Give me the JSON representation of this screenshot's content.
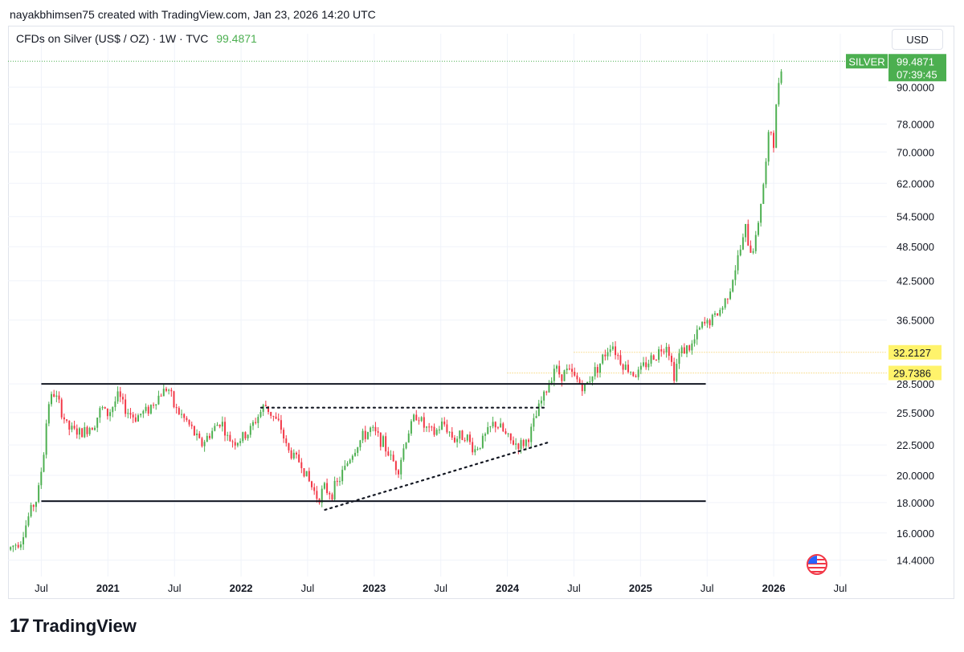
{
  "header": {
    "credit": "nayakbhimsen75 created with TradingView.com, Jan 23, 2026 14:20 UTC"
  },
  "symbol": {
    "title": "CFDs on Silver (US$ / OZ) · 1W · TVC",
    "price": "99.4871"
  },
  "currency": "USD",
  "price_badge": {
    "symbol": "SILVER",
    "price": "99.4871",
    "countdown": "07:39:45"
  },
  "level_labels": [
    "32.2127",
    "29.7386"
  ],
  "logo": {
    "text": "TradingView"
  },
  "colors": {
    "up": "#26a69a",
    "up_candle": "#4caf50",
    "down": "#f23645",
    "level_label_bg": "#fff36b",
    "badge": "#4caf50"
  },
  "chart_data": {
    "type": "candlestick",
    "title": "CFDs on Silver (US$ / OZ) · 1W · TVC",
    "y_scale": "log",
    "ylim": [
      13.6,
      104
    ],
    "yticks": [
      "90.0000",
      "78.0000",
      "70.0000",
      "62.0000",
      "54.5000",
      "48.5000",
      "42.5000",
      "36.5000",
      "28.5000",
      "25.5000",
      "22.5000",
      "20.0000",
      "18.0000",
      "16.0000",
      "14.4000"
    ],
    "xlim": [
      2020.25,
      2026.85
    ],
    "xticks": [
      {
        "label": "Jul",
        "t": 2020.5,
        "bold": false
      },
      {
        "label": "2021",
        "t": 2021.0,
        "bold": true
      },
      {
        "label": "Jul",
        "t": 2021.5,
        "bold": false
      },
      {
        "label": "2022",
        "t": 2022.0,
        "bold": true
      },
      {
        "label": "Jul",
        "t": 2022.5,
        "bold": false
      },
      {
        "label": "2023",
        "t": 2023.0,
        "bold": true
      },
      {
        "label": "Jul",
        "t": 2023.5,
        "bold": false
      },
      {
        "label": "2024",
        "t": 2024.0,
        "bold": true
      },
      {
        "label": "Jul",
        "t": 2024.5,
        "bold": false
      },
      {
        "label": "2025",
        "t": 2025.0,
        "bold": true
      },
      {
        "label": "Jul",
        "t": 2025.5,
        "bold": false
      },
      {
        "label": "2026",
        "t": 2026.0,
        "bold": true
      },
      {
        "label": "Jul",
        "t": 2026.5,
        "bold": false
      }
    ],
    "close_path": [
      [
        2020.25,
        15.0
      ],
      [
        2020.35,
        15.6
      ],
      [
        2020.42,
        17.5
      ],
      [
        2020.47,
        18.3
      ],
      [
        2020.52,
        22.0
      ],
      [
        2020.55,
        26.5
      ],
      [
        2020.6,
        27.5
      ],
      [
        2020.7,
        24.0
      ],
      [
        2020.8,
        23.5
      ],
      [
        2020.9,
        24.5
      ],
      [
        2020.95,
        26.0
      ],
      [
        2021.0,
        25.3
      ],
      [
        2021.05,
        26.5
      ],
      [
        2021.08,
        27.3
      ],
      [
        2021.12,
        26.0
      ],
      [
        2021.2,
        25.0
      ],
      [
        2021.3,
        25.8
      ],
      [
        2021.4,
        27.5
      ],
      [
        2021.45,
        28.2
      ],
      [
        2021.5,
        26.0
      ],
      [
        2021.6,
        24.5
      ],
      [
        2021.7,
        22.5
      ],
      [
        2021.8,
        24.0
      ],
      [
        2021.85,
        24.8
      ],
      [
        2021.9,
        23.0
      ],
      [
        2021.97,
        22.8
      ],
      [
        2022.05,
        23.5
      ],
      [
        2022.12,
        25.0
      ],
      [
        2022.18,
        26.3
      ],
      [
        2022.22,
        25.5
      ],
      [
        2022.3,
        24.0
      ],
      [
        2022.35,
        22.0
      ],
      [
        2022.45,
        21.0
      ],
      [
        2022.52,
        19.3
      ],
      [
        2022.58,
        18.3
      ],
      [
        2022.62,
        19.0
      ],
      [
        2022.68,
        18.7
      ],
      [
        2022.73,
        19.5
      ],
      [
        2022.82,
        21.5
      ],
      [
        2022.9,
        23.0
      ],
      [
        2022.97,
        23.9
      ],
      [
        2023.05,
        23.0
      ],
      [
        2023.12,
        21.5
      ],
      [
        2023.18,
        20.5
      ],
      [
        2023.25,
        23.5
      ],
      [
        2023.32,
        25.5
      ],
      [
        2023.38,
        24.0
      ],
      [
        2023.45,
        23.5
      ],
      [
        2023.52,
        24.5
      ],
      [
        2023.6,
        23.0
      ],
      [
        2023.68,
        23.5
      ],
      [
        2023.75,
        22.0
      ],
      [
        2023.82,
        23.0
      ],
      [
        2023.9,
        24.5
      ],
      [
        2023.95,
        24.0
      ],
      [
        2024.02,
        22.8
      ],
      [
        2024.1,
        22.5
      ],
      [
        2024.15,
        22.9
      ],
      [
        2024.2,
        24.5
      ],
      [
        2024.25,
        26.5
      ],
      [
        2024.3,
        28.0
      ],
      [
        2024.35,
        30.5
      ],
      [
        2024.4,
        29.5
      ],
      [
        2024.45,
        30.0
      ],
      [
        2024.52,
        29.0
      ],
      [
        2024.58,
        28.0
      ],
      [
        2024.63,
        29.5
      ],
      [
        2024.7,
        31.0
      ],
      [
        2024.78,
        33.5
      ],
      [
        2024.84,
        31.5
      ],
      [
        2024.88,
        30.5
      ],
      [
        2024.97,
        29.5
      ],
      [
        2025.05,
        31.0
      ],
      [
        2025.12,
        32.0
      ],
      [
        2025.2,
        33.5
      ],
      [
        2025.25,
        29.5
      ],
      [
        2025.3,
        32.5
      ],
      [
        2025.38,
        32.8
      ],
      [
        2025.45,
        35.5
      ],
      [
        2025.55,
        36.8
      ],
      [
        2025.62,
        38.5
      ],
      [
        2025.68,
        42.0
      ],
      [
        2025.74,
        47.0
      ],
      [
        2025.79,
        52.0
      ],
      [
        2025.82,
        47.5
      ],
      [
        2025.86,
        49.0
      ],
      [
        2025.9,
        57.0
      ],
      [
        2025.94,
        66.0
      ],
      [
        2025.97,
        78.0
      ],
      [
        2026.0,
        72.0
      ],
      [
        2026.03,
        90.0
      ],
      [
        2026.06,
        99.4871
      ]
    ],
    "trendlines": [
      {
        "name": "range-top-line",
        "style": "solid",
        "x1": 2020.5,
        "y1": 28.5,
        "x2": 2025.49,
        "y2": 28.5
      },
      {
        "name": "range-bottom-line",
        "style": "solid",
        "x1": 2020.5,
        "y1": 18.1,
        "x2": 2025.49,
        "y2": 18.1
      },
      {
        "name": "resistance-dotted-line",
        "style": "dotted",
        "x1": 2022.15,
        "y1": 26.0,
        "x2": 2024.3,
        "y2": 26.0
      },
      {
        "name": "rising-support-dotted-line",
        "style": "dotted",
        "x1": 2022.63,
        "y1": 17.5,
        "x2": 2024.3,
        "y2": 22.7
      }
    ],
    "horizontal_levels": [
      {
        "label": "32.2127",
        "value": 32.2127,
        "from": 2024.5,
        "color": "#f5c542"
      },
      {
        "label": "29.7386",
        "value": 29.7386,
        "from": 2024.0,
        "color": "#f5c542"
      },
      {
        "label": "99.4871",
        "value": 99.4871,
        "from": 2020.25,
        "color": "#4caf50"
      }
    ]
  }
}
